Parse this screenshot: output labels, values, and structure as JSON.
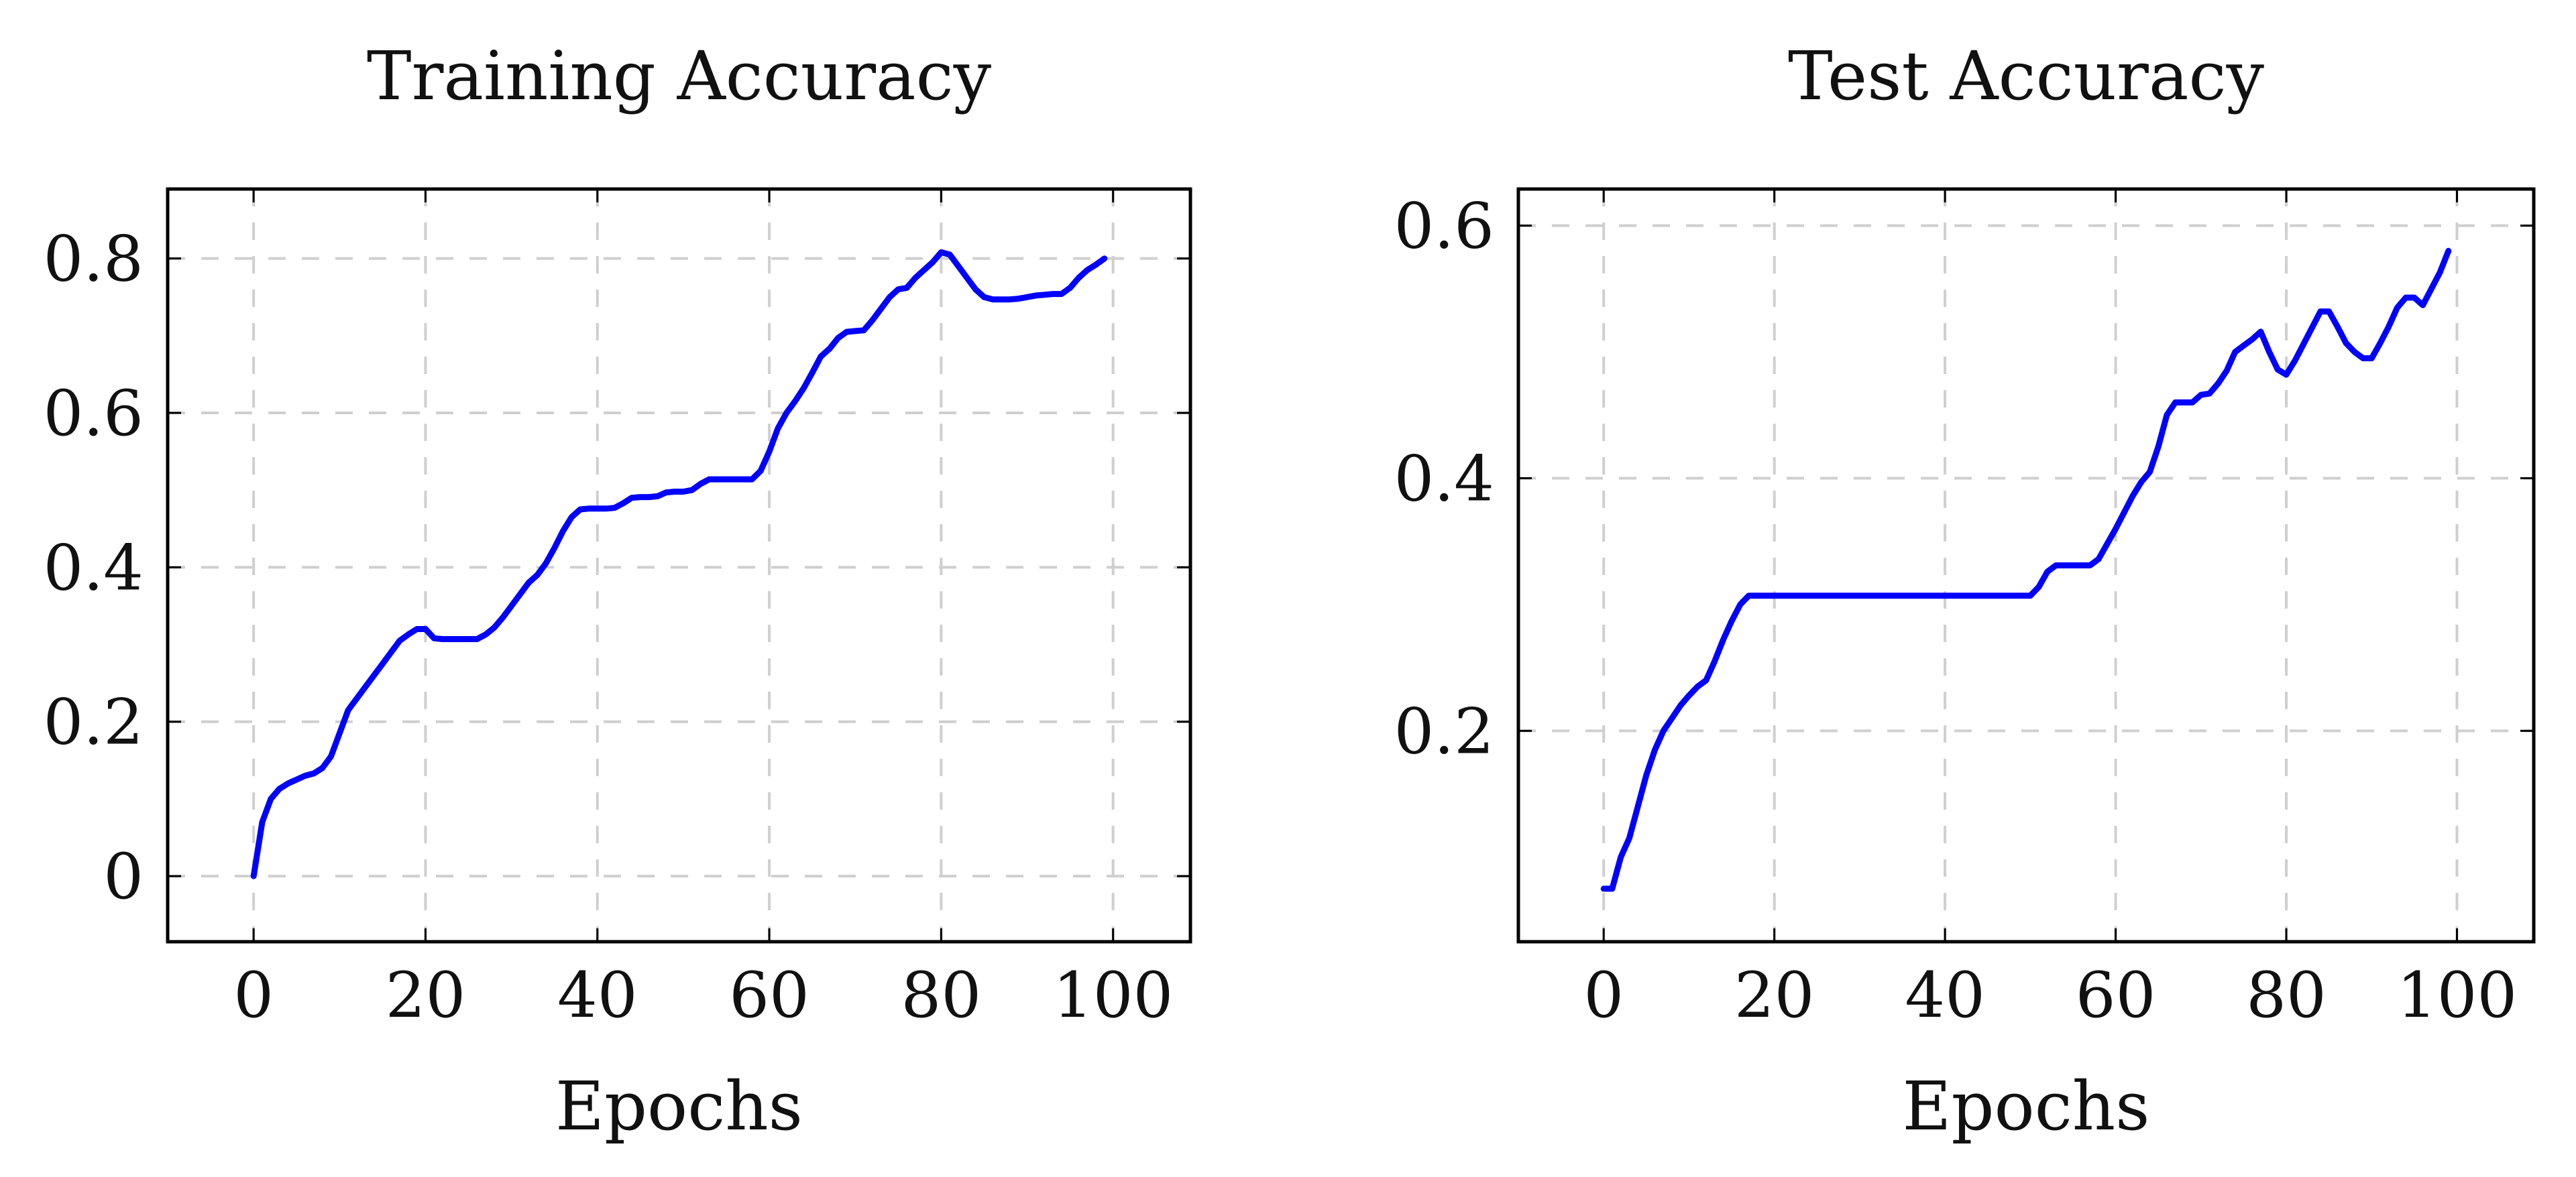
{
  "chart_data": [
    {
      "type": "line",
      "title": "Training Accuracy",
      "xlabel": "Epochs",
      "ylabel": "",
      "xlim": [
        -10,
        109
      ],
      "ylim": [
        -0.085,
        0.89
      ],
      "xticks": [
        0,
        20,
        40,
        60,
        80,
        100
      ],
      "xtick_labels": [
        "0",
        "20",
        "40",
        "60",
        "80",
        "100"
      ],
      "yticks": [
        0,
        0.2,
        0.4,
        0.6,
        0.8
      ],
      "ytick_labels": [
        "0",
        "0.2",
        "0.4",
        "0.6",
        "0.8"
      ],
      "grid": true,
      "legend": false,
      "color": "#0000ff",
      "series": [
        {
          "x": [
            0,
            1,
            2,
            3,
            4,
            5,
            6,
            7,
            8,
            9,
            10,
            11,
            12,
            13,
            14,
            15,
            16,
            17,
            18,
            19,
            20,
            21,
            22,
            23,
            24,
            25,
            26,
            27,
            28,
            29,
            30,
            31,
            32,
            33,
            34,
            35,
            36,
            37,
            38,
            39,
            40,
            41,
            42,
            43,
            44,
            45,
            46,
            47,
            48,
            49,
            50,
            51,
            52,
            53,
            54,
            55,
            56,
            57,
            58,
            59,
            60,
            61,
            62,
            63,
            64,
            65,
            66,
            67,
            68,
            69,
            70,
            71,
            72,
            73,
            74,
            75,
            76,
            77,
            78,
            79,
            80,
            81,
            82,
            83,
            84,
            85,
            86,
            87,
            88,
            89,
            90,
            91,
            92,
            93,
            94,
            95,
            96,
            97,
            98,
            99
          ],
          "y": [
            0.0,
            0.07,
            0.1,
            0.113,
            0.12,
            0.125,
            0.13,
            0.133,
            0.14,
            0.155,
            0.185,
            0.215,
            0.23,
            0.245,
            0.26,
            0.275,
            0.29,
            0.305,
            0.313,
            0.32,
            0.32,
            0.308,
            0.307,
            0.307,
            0.307,
            0.307,
            0.307,
            0.313,
            0.322,
            0.335,
            0.35,
            0.365,
            0.38,
            0.39,
            0.405,
            0.425,
            0.447,
            0.465,
            0.475,
            0.476,
            0.476,
            0.476,
            0.477,
            0.483,
            0.49,
            0.491,
            0.491,
            0.492,
            0.497,
            0.498,
            0.498,
            0.5,
            0.508,
            0.514,
            0.514,
            0.514,
            0.514,
            0.514,
            0.514,
            0.525,
            0.55,
            0.58,
            0.6,
            0.615,
            0.632,
            0.652,
            0.673,
            0.683,
            0.697,
            0.705,
            0.706,
            0.707,
            0.72,
            0.735,
            0.75,
            0.76,
            0.762,
            0.775,
            0.785,
            0.795,
            0.808,
            0.805,
            0.79,
            0.775,
            0.76,
            0.75,
            0.747,
            0.747,
            0.747,
            0.748,
            0.75,
            0.752,
            0.753,
            0.754,
            0.754,
            0.762,
            0.775,
            0.785,
            0.792,
            0.8
          ]
        }
      ]
    },
    {
      "type": "line",
      "title": "Test Accuracy",
      "xlabel": "Epochs",
      "ylabel": "",
      "xlim": [
        -10,
        109
      ],
      "ylim": [
        0.033,
        0.629
      ],
      "xticks": [
        0,
        20,
        40,
        60,
        80,
        100
      ],
      "xtick_labels": [
        "0",
        "20",
        "40",
        "60",
        "80",
        "100"
      ],
      "yticks": [
        0.2,
        0.4,
        0.6
      ],
      "ytick_labels": [
        "0.2",
        "0.4",
        "0.6"
      ],
      "grid": true,
      "legend": false,
      "color": "#0000ff",
      "series": [
        {
          "x": [
            0,
            1,
            2,
            3,
            4,
            5,
            6,
            7,
            8,
            9,
            10,
            11,
            12,
            13,
            14,
            15,
            16,
            17,
            18,
            19,
            20,
            21,
            22,
            23,
            24,
            25,
            26,
            27,
            28,
            29,
            30,
            31,
            32,
            33,
            34,
            35,
            36,
            37,
            38,
            39,
            40,
            41,
            42,
            43,
            44,
            45,
            46,
            47,
            48,
            49,
            50,
            51,
            52,
            53,
            54,
            55,
            56,
            57,
            58,
            59,
            60,
            61,
            62,
            63,
            64,
            65,
            66,
            67,
            68,
            69,
            70,
            71,
            72,
            73,
            74,
            75,
            76,
            77,
            78,
            79,
            80,
            81,
            82,
            83,
            84,
            85,
            86,
            87,
            88,
            89,
            90,
            91,
            92,
            93,
            94,
            95,
            96,
            97,
            98,
            99
          ],
          "y": [
            0.075,
            0.075,
            0.1,
            0.115,
            0.14,
            0.165,
            0.185,
            0.2,
            0.21,
            0.22,
            0.228,
            0.235,
            0.24,
            0.255,
            0.272,
            0.287,
            0.3,
            0.307,
            0.307,
            0.307,
            0.307,
            0.307,
            0.307,
            0.307,
            0.307,
            0.307,
            0.307,
            0.307,
            0.307,
            0.307,
            0.307,
            0.307,
            0.307,
            0.307,
            0.307,
            0.307,
            0.307,
            0.307,
            0.307,
            0.307,
            0.307,
            0.307,
            0.307,
            0.307,
            0.307,
            0.307,
            0.307,
            0.307,
            0.307,
            0.307,
            0.307,
            0.314,
            0.326,
            0.331,
            0.331,
            0.331,
            0.331,
            0.331,
            0.336,
            0.348,
            0.36,
            0.373,
            0.386,
            0.397,
            0.405,
            0.425,
            0.45,
            0.46,
            0.46,
            0.46,
            0.466,
            0.467,
            0.475,
            0.485,
            0.5,
            0.505,
            0.51,
            0.516,
            0.5,
            0.486,
            0.482,
            0.493,
            0.506,
            0.519,
            0.532,
            0.532,
            0.52,
            0.507,
            0.5,
            0.495,
            0.495,
            0.507,
            0.52,
            0.535,
            0.543,
            0.543,
            0.537,
            0.55,
            0.563,
            0.58
          ]
        }
      ]
    }
  ]
}
